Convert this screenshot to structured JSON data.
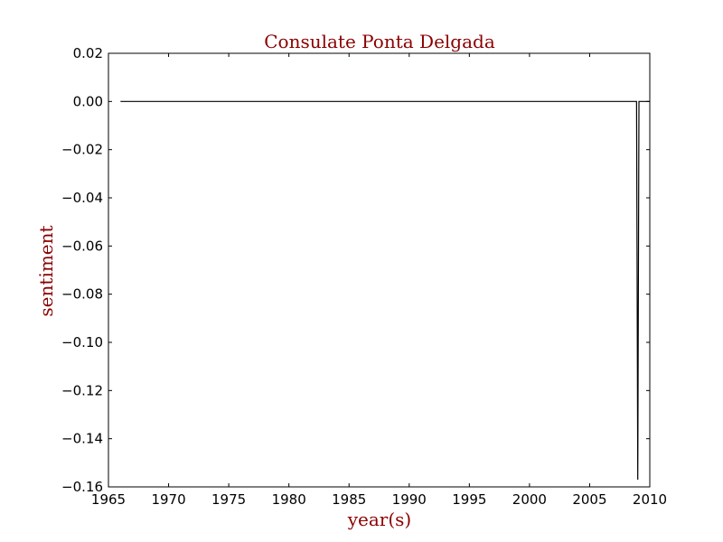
{
  "chart_data": {
    "type": "line",
    "title": "Consulate Ponta Delgada",
    "xlabel": "year(s)",
    "ylabel": "sentiment",
    "xlim": [
      1965,
      2010
    ],
    "ylim": [
      -0.16,
      0.02
    ],
    "grid": false,
    "x_ticks": [
      1965,
      1970,
      1975,
      1980,
      1985,
      1990,
      1995,
      2000,
      2005,
      2010
    ],
    "x_tick_labels": [
      "1965",
      "1970",
      "1975",
      "1980",
      "1985",
      "1990",
      "1995",
      "2000",
      "2005",
      "2010"
    ],
    "y_ticks": [
      0.02,
      0.0,
      -0.02,
      -0.04,
      -0.06,
      -0.08,
      -0.1,
      -0.12,
      -0.14,
      -0.16
    ],
    "y_tick_labels": [
      "0.02",
      "0.00",
      "−0.02",
      "−0.04",
      "−0.06",
      "−0.08",
      "−0.10",
      "−0.12",
      "−0.14",
      "−0.16"
    ],
    "series": [
      {
        "color": "#000000",
        "x": [
          1966.0,
          2008.9,
          2009.0,
          2009.1,
          2009.8,
          2010.0
        ],
        "y": [
          0.0,
          0.0,
          -0.157,
          0.0,
          0.0,
          0.0
        ]
      }
    ]
  }
}
